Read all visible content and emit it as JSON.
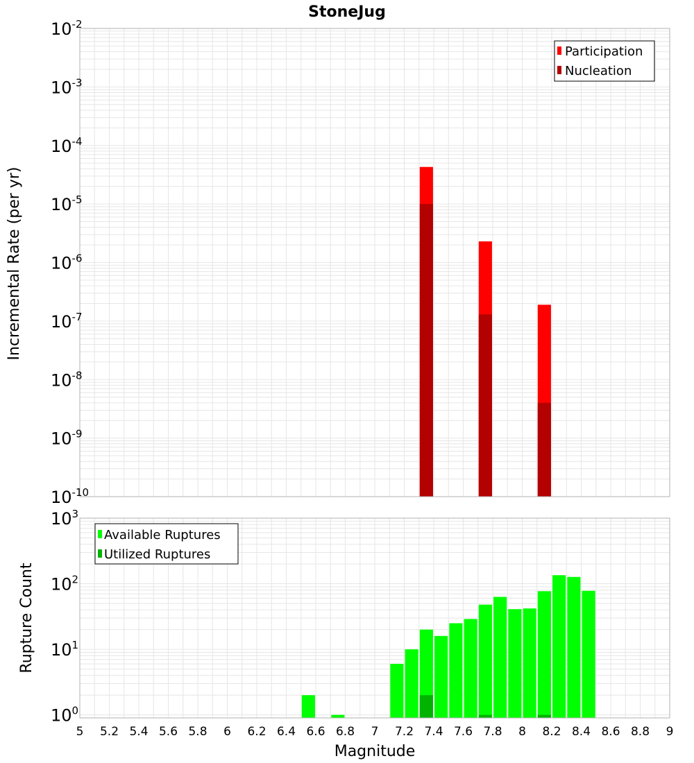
{
  "title": "StoneJug",
  "xlabel": "Magnitude",
  "colors": {
    "participation": "#ff0000",
    "nucleation": "#b30000",
    "available": "#00ff00",
    "utilized": "#00b300",
    "grid": "#e6e6e6",
    "frame": "#b0b0b0"
  },
  "chart_data": [
    {
      "type": "bar",
      "scale": "log",
      "ylabel": "Incremental Rate (per yr)",
      "ylim": [
        1e-10,
        0.01
      ],
      "xlim": [
        5,
        9
      ],
      "bar_width": 0.09,
      "grid": true,
      "legend_placement": "top-right",
      "y_ticks": [
        {
          "base": "10",
          "exp": "-10"
        },
        {
          "base": "10",
          "exp": "-9"
        },
        {
          "base": "10",
          "exp": "-8"
        },
        {
          "base": "10",
          "exp": "-7"
        },
        {
          "base": "10",
          "exp": "-6"
        },
        {
          "base": "10",
          "exp": "-5"
        },
        {
          "base": "10",
          "exp": "-4"
        },
        {
          "base": "10",
          "exp": "-3"
        },
        {
          "base": "10",
          "exp": "-2"
        }
      ],
      "series": [
        {
          "name": "Participation",
          "x": [
            7.35,
            7.75,
            8.15
          ],
          "values": [
            4.3e-05,
            2.3e-06,
            1.9e-07
          ]
        },
        {
          "name": "Nucleation",
          "x": [
            7.35,
            7.75,
            8.15
          ],
          "values": [
            1e-05,
            1.3e-07,
            4e-09
          ]
        }
      ]
    },
    {
      "type": "bar",
      "scale": "log",
      "ylabel": "Rupture Count",
      "ylim": [
        0.9,
        1000
      ],
      "xlim": [
        5,
        9
      ],
      "bar_width": 0.09,
      "grid": true,
      "legend_placement": "top-left",
      "y_ticks": [
        {
          "base": "10",
          "exp": "0"
        },
        {
          "base": "10",
          "exp": "1"
        },
        {
          "base": "10",
          "exp": "2"
        },
        {
          "base": "10",
          "exp": "3"
        }
      ],
      "series": [
        {
          "name": "Available Ruptures",
          "x": [
            6.55,
            6.75,
            7.15,
            7.25,
            7.35,
            7.45,
            7.55,
            7.65,
            7.75,
            7.85,
            7.95,
            8.05,
            8.15,
            8.25,
            8.35,
            8.45
          ],
          "values": [
            2,
            1,
            6,
            10,
            20,
            16,
            25,
            29,
            48,
            63,
            41,
            42,
            77,
            135,
            127,
            78
          ]
        },
        {
          "name": "Utilized Ruptures",
          "x": [
            7.35,
            7.75,
            8.15
          ],
          "values": [
            2,
            1,
            1
          ]
        }
      ]
    }
  ],
  "x_ticks": [
    "5",
    "5.2",
    "5.4",
    "5.6",
    "5.8",
    "6",
    "6.2",
    "6.4",
    "6.6",
    "6.8",
    "7",
    "7.2",
    "7.4",
    "7.6",
    "7.8",
    "8",
    "8.2",
    "8.4",
    "8.6",
    "8.8",
    "9"
  ]
}
